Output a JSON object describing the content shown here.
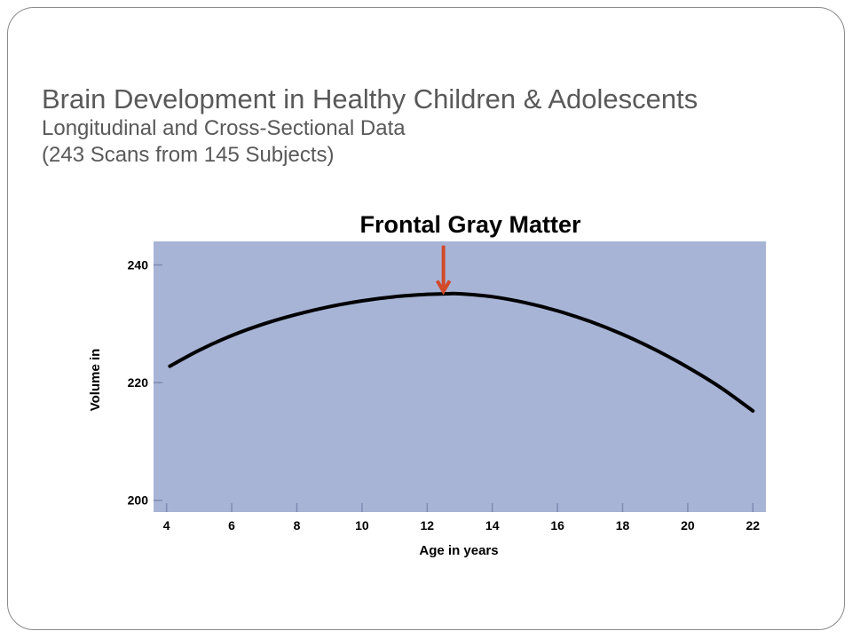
{
  "slide": {
    "title": "Brain Development in Healthy Children & Adolescents",
    "subtitle": "Longitudinal and Cross-Sectional Data",
    "subtitle2": "(243 Scans from 145 Subjects)"
  },
  "colors": {
    "plot_background": "#a8b4d6",
    "curve": "#000000",
    "arrow": "#d24a2a",
    "heading_text": "#595959"
  },
  "chart_data": {
    "type": "line",
    "title": "Frontal Gray Matter",
    "xlabel": "Age in years",
    "ylabel": "Volume in",
    "xlim": [
      4,
      22
    ],
    "ylim": [
      198,
      244
    ],
    "x_ticks": [
      4,
      6,
      8,
      10,
      12,
      14,
      16,
      18,
      20,
      22
    ],
    "y_ticks": [
      200,
      220,
      240
    ],
    "grid": false,
    "series": [
      {
        "x": [
          4.1,
          5,
          6,
          7,
          8,
          9,
          10,
          11,
          12,
          12.6,
          13,
          14,
          15,
          16,
          17,
          18,
          19,
          20,
          21,
          22
        ],
        "y": [
          222.8,
          225.5,
          228.0,
          230.0,
          231.6,
          232.9,
          233.9,
          234.6,
          235.0,
          235.1,
          235.1,
          234.6,
          233.6,
          232.2,
          230.4,
          228.2,
          225.6,
          222.6,
          219.2,
          215.2
        ]
      }
    ],
    "annotations": [
      {
        "type": "arrow",
        "x": 12.5,
        "y_tip": 235.5,
        "y_tail": 243.3
      }
    ]
  }
}
